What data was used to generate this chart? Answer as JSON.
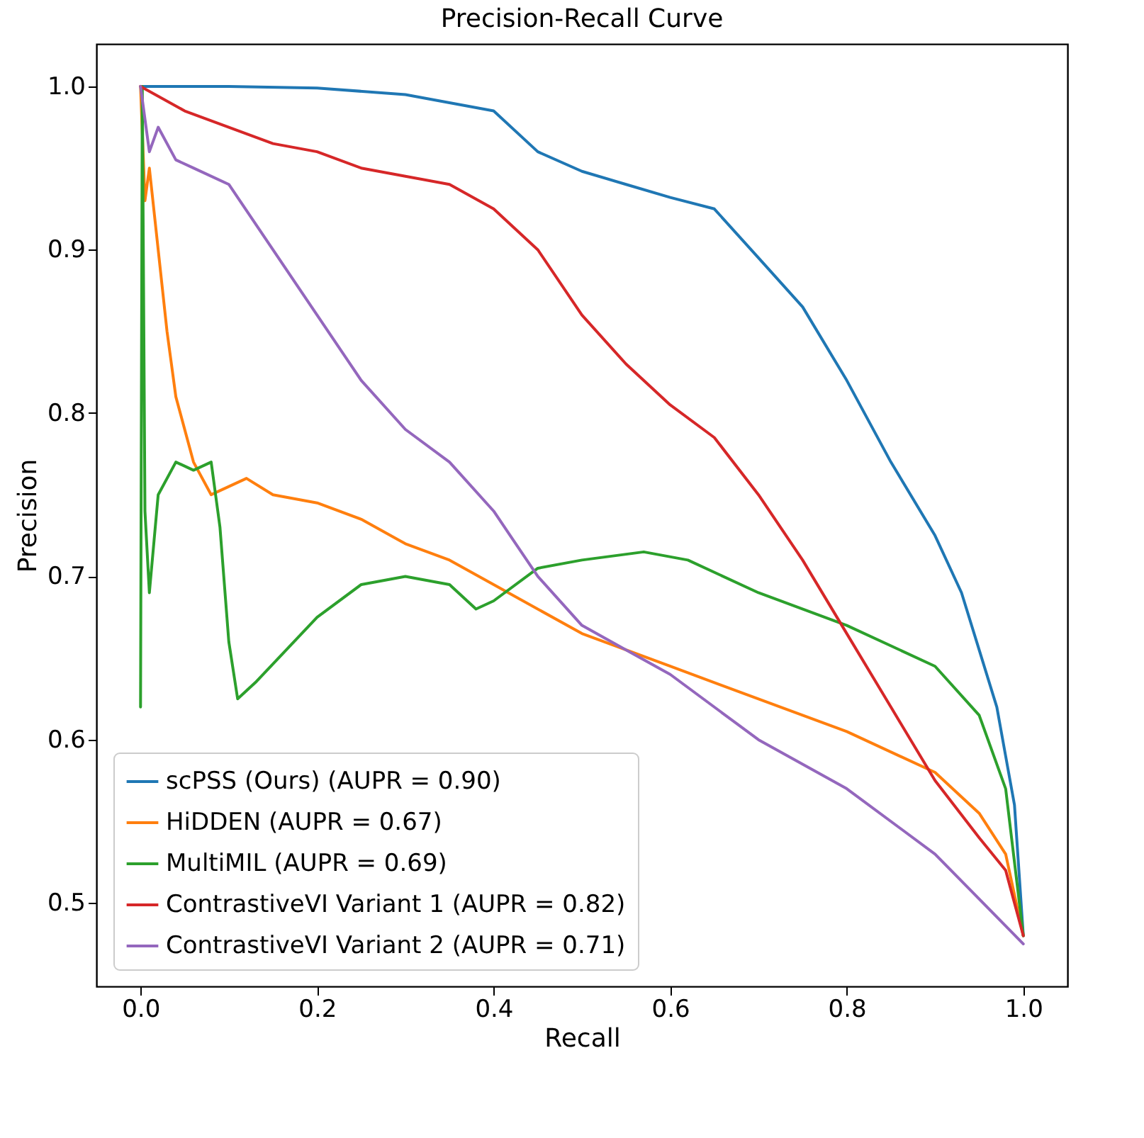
{
  "chart_data": {
    "type": "line",
    "title": "Precision-Recall Curve",
    "xlabel": "Recall",
    "ylabel": "Precision",
    "xlim": [
      -0.05,
      1.05
    ],
    "ylim": [
      0.449,
      1.026
    ],
    "xticks": [
      {
        "value": 0,
        "label": "0.0"
      },
      0.2,
      0.4,
      0.6,
      0.8,
      {
        "value": 1,
        "label": "1.0"
      }
    ],
    "yticks": [
      0.5,
      0.6,
      0.7,
      0.8,
      0.9,
      {
        "value": 1,
        "label": "1.0"
      }
    ],
    "grid": false,
    "legend": "bottom left",
    "line_style": "solid",
    "series": [
      {
        "name": "scPSS (Ours) (AUPR = 0.90)",
        "color": "#1f77b4",
        "x": [
          0,
          0.1,
          0.2,
          0.3,
          0.35,
          0.4,
          0.45,
          0.5,
          0.55,
          0.6,
          0.65,
          0.7,
          0.75,
          0.8,
          0.85,
          0.9,
          0.93,
          0.95,
          0.97,
          0.98,
          0.99,
          1.0
        ],
        "values": [
          1.0,
          1.0,
          0.999,
          0.995,
          0.99,
          0.985,
          0.96,
          0.948,
          0.94,
          0.932,
          0.925,
          0.895,
          0.865,
          0.82,
          0.77,
          0.725,
          0.69,
          0.655,
          0.62,
          0.59,
          0.56,
          0.48
        ]
      },
      {
        "name": "HiDDEN (AUPR = 0.67)",
        "color": "#ff7f0e",
        "x": [
          0,
          0.005,
          0.01,
          0.02,
          0.03,
          0.04,
          0.06,
          0.08,
          0.1,
          0.12,
          0.15,
          0.2,
          0.25,
          0.3,
          0.35,
          0.4,
          0.5,
          0.6,
          0.7,
          0.8,
          0.9,
          0.95,
          0.98,
          1.0
        ],
        "values": [
          1.0,
          0.93,
          0.95,
          0.9,
          0.85,
          0.81,
          0.77,
          0.75,
          0.755,
          0.76,
          0.75,
          0.745,
          0.735,
          0.72,
          0.71,
          0.695,
          0.665,
          0.645,
          0.625,
          0.605,
          0.58,
          0.555,
          0.53,
          0.48
        ]
      },
      {
        "name": "MultiMIL (AUPR = 0.69)",
        "color": "#2ca02c",
        "x": [
          0,
          0.002,
          0.005,
          0.01,
          0.02,
          0.04,
          0.06,
          0.08,
          0.09,
          0.1,
          0.11,
          0.13,
          0.2,
          0.25,
          0.3,
          0.35,
          0.38,
          0.4,
          0.45,
          0.5,
          0.57,
          0.62,
          0.7,
          0.8,
          0.9,
          0.95,
          0.98,
          1.0
        ],
        "values": [
          0.62,
          1.0,
          0.74,
          0.69,
          0.75,
          0.77,
          0.765,
          0.77,
          0.73,
          0.66,
          0.625,
          0.635,
          0.675,
          0.695,
          0.7,
          0.695,
          0.68,
          0.685,
          0.705,
          0.71,
          0.715,
          0.71,
          0.69,
          0.67,
          0.645,
          0.615,
          0.57,
          0.48
        ]
      },
      {
        "name": "ContrastiveVI Variant 1 (AUPR = 0.82)",
        "color": "#d62728",
        "x": [
          0,
          0.05,
          0.1,
          0.15,
          0.2,
          0.25,
          0.3,
          0.35,
          0.4,
          0.45,
          0.5,
          0.55,
          0.6,
          0.65,
          0.7,
          0.75,
          0.8,
          0.85,
          0.9,
          0.95,
          0.98,
          1.0
        ],
        "values": [
          1.0,
          0.985,
          0.975,
          0.965,
          0.96,
          0.95,
          0.945,
          0.94,
          0.925,
          0.9,
          0.86,
          0.83,
          0.805,
          0.785,
          0.75,
          0.71,
          0.665,
          0.62,
          0.575,
          0.54,
          0.52,
          0.48
        ]
      },
      {
        "name": "ContrastiveVI Variant 2 (AUPR = 0.71)",
        "color": "#9467bd",
        "x": [
          0,
          0.01,
          0.02,
          0.04,
          0.06,
          0.1,
          0.15,
          0.2,
          0.25,
          0.3,
          0.35,
          0.4,
          0.45,
          0.5,
          0.55,
          0.6,
          0.7,
          0.8,
          0.9,
          1.0
        ],
        "values": [
          1.0,
          0.96,
          0.975,
          0.955,
          0.95,
          0.94,
          0.9,
          0.86,
          0.82,
          0.79,
          0.77,
          0.74,
          0.7,
          0.67,
          0.655,
          0.64,
          0.6,
          0.57,
          0.53,
          0.475
        ]
      }
    ]
  }
}
